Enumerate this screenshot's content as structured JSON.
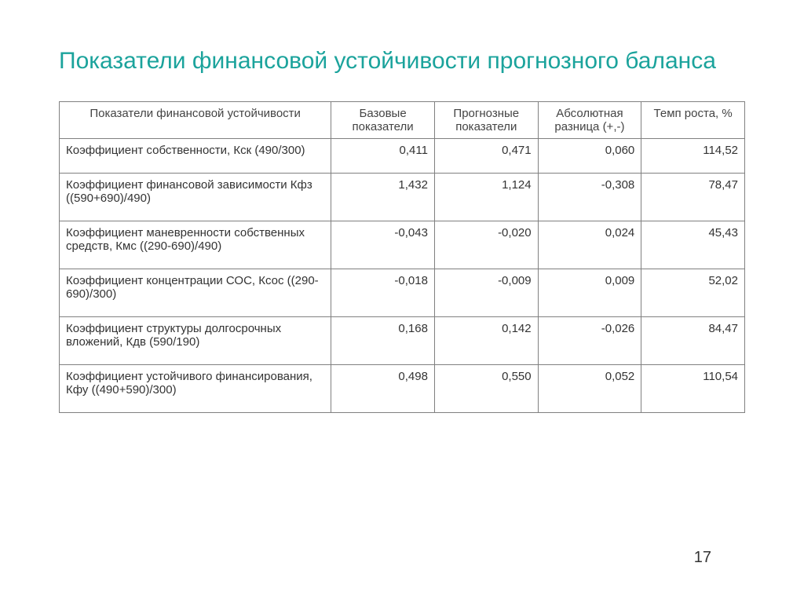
{
  "title": "Показатели финансовой устойчивости прогнозного баланса",
  "page_number": "17",
  "table": {
    "columns": [
      "Показатели финансовой устойчивости",
      "Базовые показатели",
      "Прогнозные показатели",
      "Абсолютная разница (+,-)",
      "Темп роста, %"
    ],
    "rows": [
      {
        "indicator": "Коэффициент собственности, Кск (490/300)",
        "base": "0,411",
        "forecast": "0,471",
        "diff": "0,060",
        "growth": "114,52"
      },
      {
        "indicator": "Коэффициент финансовой зависимости Кфз ((590+690)/490)",
        "base": "1,432",
        "forecast": "1,124",
        "diff": "-0,308",
        "growth": "78,47"
      },
      {
        "indicator": "Коэффициент маневренности собственных средств, Кмс ((290-690)/490)",
        "base": "-0,043",
        "forecast": "-0,020",
        "diff": "0,024",
        "growth": "45,43"
      },
      {
        "indicator": "Коэффициент концентрации СОС, Ксос ((290-690)/300)",
        "base": "-0,018",
        "forecast": "-0,009",
        "diff": "0,009",
        "growth": "52,02"
      },
      {
        "indicator": "Коэффициент структуры долгосрочных вложений, Кдв (590/190)",
        "base": "0,168",
        "forecast": "0,142",
        "diff": "-0,026",
        "growth": "84,47"
      },
      {
        "indicator": "Коэффициент устойчивого финансирования, Кфу ((490+590)/300)",
        "base": "0,498",
        "forecast": "0,550",
        "diff": "0,052",
        "growth": "110,54"
      }
    ]
  },
  "colors": {
    "title": "#1ba39c",
    "border": "#808080",
    "text": "#333333",
    "background": "#ffffff"
  }
}
